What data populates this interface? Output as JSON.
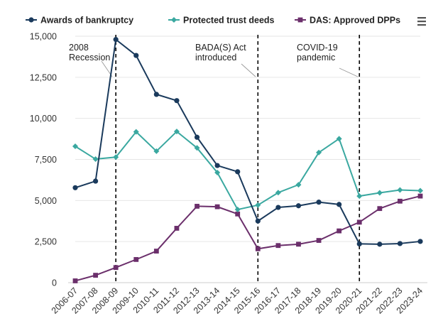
{
  "chart_data": {
    "type": "line",
    "categories": [
      "2006-07",
      "2007-08",
      "2008-09",
      "2009-10",
      "2010-11",
      "2011-12",
      "2012-13",
      "2013-14",
      "2014-15",
      "2015-16",
      "2016-17",
      "2017-18",
      "2018-19",
      "2019-20",
      "2020-21",
      "2021-22",
      "2022-23",
      "2023-24"
    ],
    "series": [
      {
        "name": "Awards of bankruptcy",
        "color": "#1a3a5c",
        "marker": "circle",
        "values": [
          5780,
          6180,
          14800,
          13830,
          11460,
          11080,
          8850,
          7130,
          6750,
          3750,
          4580,
          4680,
          4900,
          4760,
          2360,
          2340,
          2380,
          2510
        ]
      },
      {
        "name": "Protected trust deeds",
        "color": "#3aa8a0",
        "marker": "diamond",
        "values": [
          8300,
          7520,
          7640,
          9180,
          8000,
          9200,
          8200,
          6700,
          4450,
          4720,
          5480,
          5960,
          7920,
          8760,
          5270,
          5470,
          5640,
          5600
        ]
      },
      {
        "name": "DAS: Approved DPPs",
        "color": "#6b2f6b",
        "marker": "square",
        "values": [
          110,
          450,
          920,
          1410,
          1920,
          3310,
          4650,
          4620,
          4180,
          2060,
          2260,
          2340,
          2570,
          3150,
          3680,
          4510,
          4960,
          5270
        ]
      }
    ],
    "y_ticks": [
      "0",
      "2,500",
      "5,000",
      "7,500",
      "10,000",
      "12,500",
      "15,000"
    ],
    "y_tick_values": [
      0,
      2500,
      5000,
      7500,
      10000,
      12500,
      15000
    ],
    "ylim": [
      0,
      15000
    ],
    "legend_position": "top",
    "annotations": [
      {
        "id": "recession",
        "lines": [
          "2008",
          "Recession"
        ],
        "at_category": "2008-09"
      },
      {
        "id": "bada",
        "lines": [
          "BADA(S) Act",
          "introduced"
        ],
        "at_category": "2015-16"
      },
      {
        "id": "covid",
        "lines": [
          "COVID-19",
          "pandemic"
        ],
        "at_category": "2020-21"
      }
    ]
  },
  "menu_icon": "hamburger-menu-icon"
}
